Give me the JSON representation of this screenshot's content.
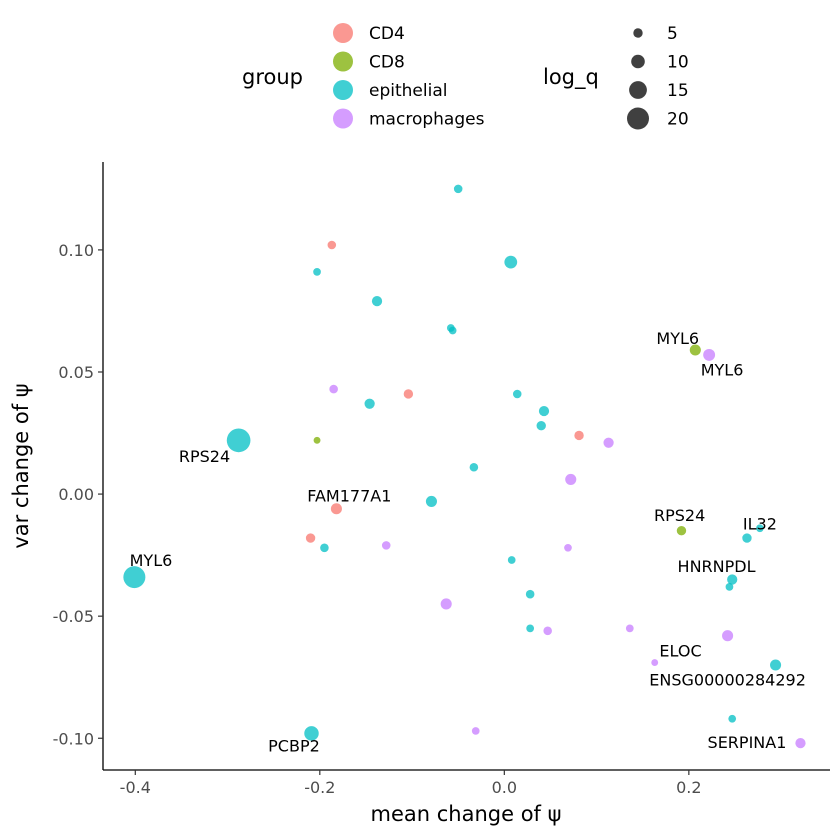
{
  "chart_data": {
    "type": "scatter",
    "xlabel": "mean change of ψ",
    "ylabel": "var change of ψ",
    "xlim": [
      -0.435,
      0.353
    ],
    "ylim": [
      -0.113,
      0.136
    ],
    "x_ticks": [
      -0.4,
      -0.2,
      0.0,
      0.2
    ],
    "x_tick_labels": [
      "-0.4",
      "-0.2",
      "0.0",
      "0.2"
    ],
    "y_ticks": [
      -0.1,
      -0.05,
      0.0,
      0.05,
      0.1
    ],
    "y_tick_labels": [
      "-0.10",
      "-0.05",
      "0.00",
      "0.05",
      "0.10"
    ],
    "grid": false,
    "legend_position": "top",
    "legend": {
      "color_title": "group",
      "groups": [
        {
          "name": "CD4",
          "color": "#F8766D"
        },
        {
          "name": "CD8",
          "color": "#7CAE00"
        },
        {
          "name": "epithelial",
          "color": "#00BFC4"
        },
        {
          "name": "macrophages",
          "color": "#C77CFF"
        }
      ],
      "size_title": "log_q",
      "sizes": [
        {
          "label": "5",
          "value": 5
        },
        {
          "label": "10",
          "value": 10
        },
        {
          "label": "15",
          "value": 15
        },
        {
          "label": "20",
          "value": 20
        }
      ]
    },
    "points": [
      {
        "x": -0.05,
        "y": 0.125,
        "group": "epithelial",
        "log_q": 4
      },
      {
        "x": -0.187,
        "y": 0.102,
        "group": "CD4",
        "log_q": 4
      },
      {
        "x": -0.203,
        "y": 0.091,
        "group": "epithelial",
        "log_q": 3
      },
      {
        "x": 0.007,
        "y": 0.095,
        "group": "epithelial",
        "log_q": 9
      },
      {
        "x": -0.138,
        "y": 0.079,
        "group": "epithelial",
        "log_q": 6
      },
      {
        "x": -0.058,
        "y": 0.068,
        "group": "epithelial",
        "log_q": 3
      },
      {
        "x": -0.056,
        "y": 0.067,
        "group": "epithelial",
        "log_q": 3
      },
      {
        "x": 0.207,
        "y": 0.059,
        "group": "CD8",
        "log_q": 7
      },
      {
        "x": 0.222,
        "y": 0.057,
        "group": "macrophages",
        "log_q": 8
      },
      {
        "x": -0.185,
        "y": 0.043,
        "group": "macrophages",
        "log_q": 4
      },
      {
        "x": -0.104,
        "y": 0.041,
        "group": "CD4",
        "log_q": 5
      },
      {
        "x": 0.014,
        "y": 0.041,
        "group": "epithelial",
        "log_q": 4
      },
      {
        "x": -0.146,
        "y": 0.037,
        "group": "epithelial",
        "log_q": 6
      },
      {
        "x": 0.043,
        "y": 0.034,
        "group": "epithelial",
        "log_q": 6
      },
      {
        "x": 0.04,
        "y": 0.028,
        "group": "epithelial",
        "log_q": 5
      },
      {
        "x": 0.081,
        "y": 0.024,
        "group": "CD4",
        "log_q": 5
      },
      {
        "x": -0.288,
        "y": 0.022,
        "group": "epithelial",
        "log_q": 22
      },
      {
        "x": -0.203,
        "y": 0.022,
        "group": "CD8",
        "log_q": 2
      },
      {
        "x": 0.113,
        "y": 0.021,
        "group": "macrophages",
        "log_q": 6
      },
      {
        "x": -0.033,
        "y": 0.011,
        "group": "epithelial",
        "log_q": 4
      },
      {
        "x": 0.072,
        "y": 0.006,
        "group": "macrophages",
        "log_q": 7
      },
      {
        "x": -0.079,
        "y": -0.003,
        "group": "epithelial",
        "log_q": 7
      },
      {
        "x": -0.182,
        "y": -0.006,
        "group": "CD4",
        "log_q": 7
      },
      {
        "x": 0.192,
        "y": -0.015,
        "group": "CD8",
        "log_q": 5
      },
      {
        "x": 0.277,
        "y": -0.014,
        "group": "epithelial",
        "log_q": 3
      },
      {
        "x": 0.263,
        "y": -0.018,
        "group": "epithelial",
        "log_q": 5
      },
      {
        "x": -0.21,
        "y": -0.018,
        "group": "CD4",
        "log_q": 5
      },
      {
        "x": -0.195,
        "y": -0.022,
        "group": "epithelial",
        "log_q": 4
      },
      {
        "x": -0.128,
        "y": -0.021,
        "group": "macrophages",
        "log_q": 4
      },
      {
        "x": 0.069,
        "y": -0.022,
        "group": "macrophages",
        "log_q": 3
      },
      {
        "x": 0.008,
        "y": -0.027,
        "group": "epithelial",
        "log_q": 3
      },
      {
        "x": -0.401,
        "y": -0.034,
        "group": "epithelial",
        "log_q": 20
      },
      {
        "x": 0.247,
        "y": -0.035,
        "group": "epithelial",
        "log_q": 6
      },
      {
        "x": 0.244,
        "y": -0.038,
        "group": "epithelial",
        "log_q": 3
      },
      {
        "x": 0.028,
        "y": -0.041,
        "group": "epithelial",
        "log_q": 4
      },
      {
        "x": -0.063,
        "y": -0.045,
        "group": "macrophages",
        "log_q": 7
      },
      {
        "x": 0.028,
        "y": -0.055,
        "group": "epithelial",
        "log_q": 3
      },
      {
        "x": 0.047,
        "y": -0.056,
        "group": "macrophages",
        "log_q": 4
      },
      {
        "x": 0.136,
        "y": -0.055,
        "group": "macrophages",
        "log_q": 3
      },
      {
        "x": 0.242,
        "y": -0.058,
        "group": "macrophages",
        "log_q": 7
      },
      {
        "x": 0.163,
        "y": -0.069,
        "group": "macrophages",
        "log_q": 2
      },
      {
        "x": 0.294,
        "y": -0.07,
        "group": "epithelial",
        "log_q": 7
      },
      {
        "x": 0.247,
        "y": -0.092,
        "group": "epithelial",
        "log_q": 3
      },
      {
        "x": -0.209,
        "y": -0.098,
        "group": "epithelial",
        "log_q": 11
      },
      {
        "x": -0.031,
        "y": -0.097,
        "group": "macrophages",
        "log_q": 3
      },
      {
        "x": 0.321,
        "y": -0.102,
        "group": "macrophages",
        "log_q": 6
      }
    ],
    "annotations": [
      {
        "text": "MYL6",
        "x": 0.188,
        "y": 0.064
      },
      {
        "text": "MYL6",
        "x": 0.236,
        "y": 0.051
      },
      {
        "text": "RPS24",
        "x": -0.325,
        "y": 0.0155
      },
      {
        "text": "FAM177A1",
        "x": -0.168,
        "y": -0.0005
      },
      {
        "text": "RPS24",
        "x": 0.19,
        "y": -0.0085
      },
      {
        "text": "IL32",
        "x": 0.277,
        "y": -0.012
      },
      {
        "text": "MYL6",
        "x": -0.383,
        "y": -0.027
      },
      {
        "text": "HNRNPDL",
        "x": 0.23,
        "y": -0.0295
      },
      {
        "text": "ELOC",
        "x": 0.191,
        "y": -0.064
      },
      {
        "text": "ENSG00000284292",
        "x": 0.242,
        "y": -0.076
      },
      {
        "text": "PCBP2",
        "x": -0.228,
        "y": -0.103
      },
      {
        "text": "SERPINA1",
        "x": 0.263,
        "y": -0.1015
      }
    ]
  }
}
